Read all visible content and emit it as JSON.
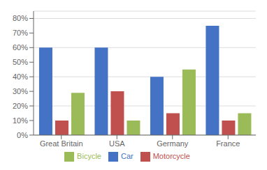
{
  "chart_data": {
    "type": "bar",
    "categories": [
      "Great Britain",
      "USA",
      "Germany",
      "France"
    ],
    "series": [
      {
        "name": "Car",
        "color": "#4472C4",
        "values": [
          0.6,
          0.6,
          0.4,
          0.75
        ]
      },
      {
        "name": "Motorcycle",
        "color": "#C0504D",
        "values": [
          0.1,
          0.3,
          0.15,
          0.1
        ]
      },
      {
        "name": "Bicycle",
        "color": "#9BBB59",
        "values": [
          0.29,
          0.1,
          0.45,
          0.15
        ]
      }
    ],
    "ylim": [
      0,
      0.85
    ],
    "yticks": [
      {
        "value": 0,
        "label": "0%"
      },
      {
        "value": 0.1,
        "label": "10%"
      },
      {
        "value": 0.2,
        "label": "20%"
      },
      {
        "value": 0.3,
        "label": "30%"
      },
      {
        "value": 0.4,
        "label": "40%"
      },
      {
        "value": 0.5,
        "label": "50%"
      },
      {
        "value": 0.6,
        "label": "60%"
      },
      {
        "value": 0.7,
        "label": "70%"
      },
      {
        "value": 0.8,
        "label": "80%"
      }
    ],
    "grid": true,
    "legend": "bottom"
  }
}
